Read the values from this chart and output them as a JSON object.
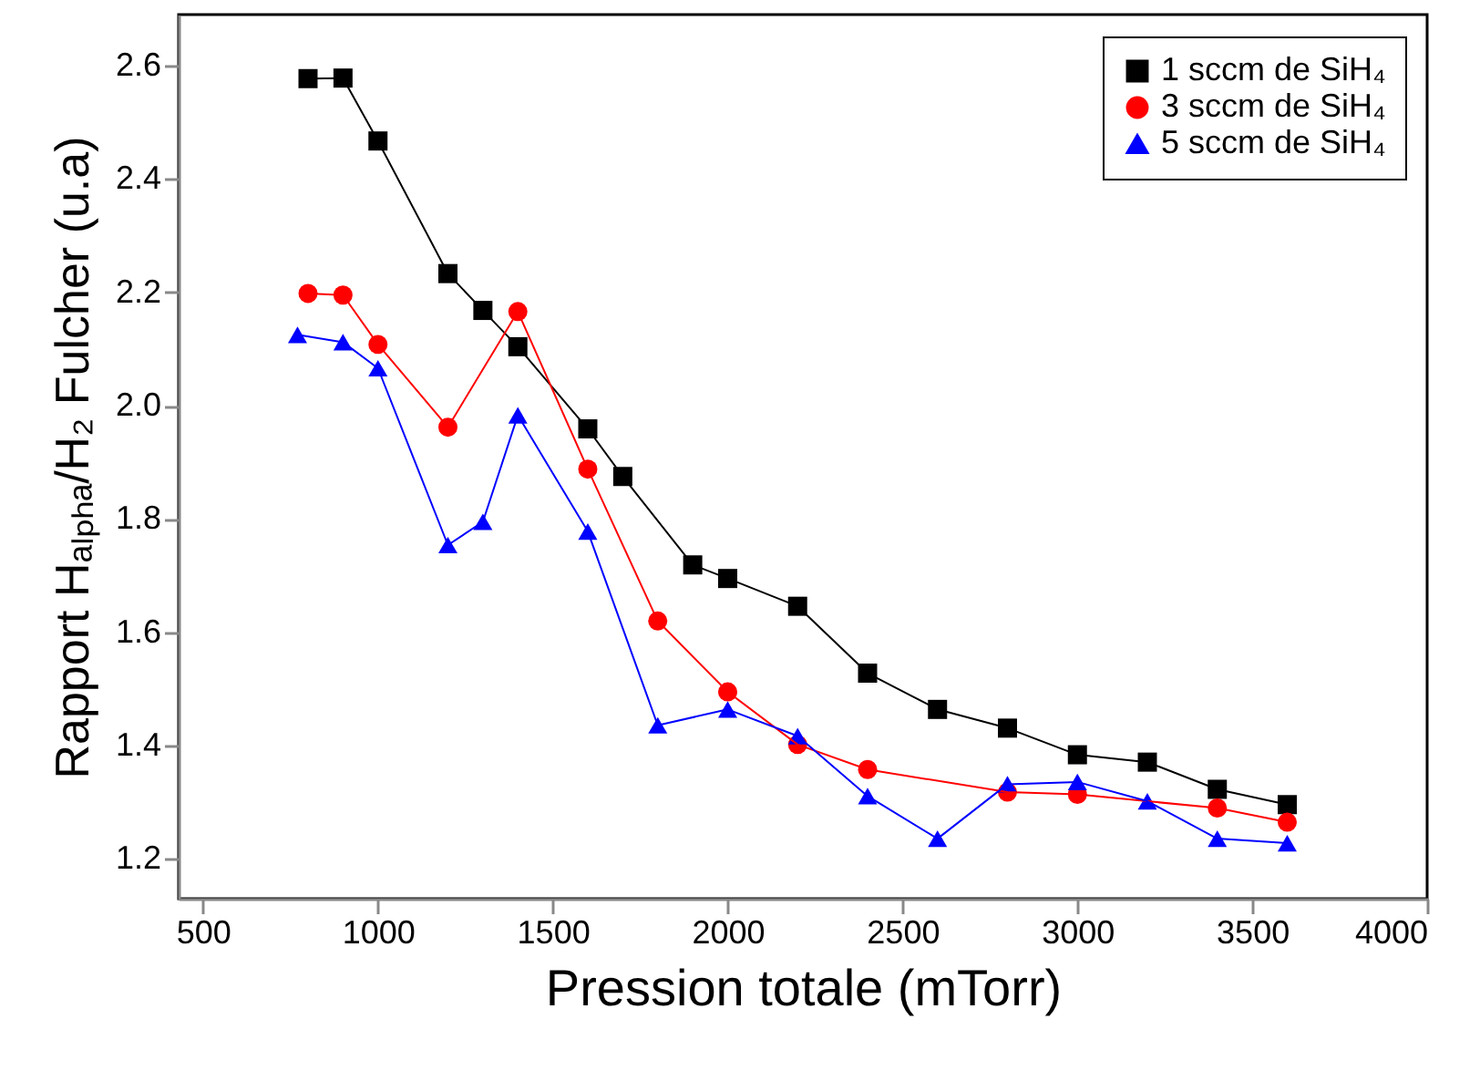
{
  "chart_data": {
    "type": "line",
    "xlabel": "Pression totale (mTorr)",
    "ylabel": "Rapport Hₐₗₚₕₐ/H₂ Fulcher (u.a)",
    "xlim": [
      430,
      4000
    ],
    "xticks": [
      500,
      1000,
      1500,
      2000,
      2500,
      3000,
      3500,
      4000
    ],
    "ylim": [
      1.13,
      2.69
    ],
    "yticks": [
      1.2,
      1.4,
      1.6,
      1.8,
      {
        "value": 2,
        "label": "2.0"
      },
      2.2,
      2.4,
      2.6
    ],
    "grid": false,
    "legend": "top right",
    "line_style": "solid",
    "series": [
      {
        "name": "1 sccm de SiH₄",
        "color": "#000000",
        "marker": "square",
        "x": [
          800,
          900,
          1000,
          1200,
          1300,
          1400,
          1600,
          1700,
          1900,
          2000,
          2200,
          2400,
          2600,
          2800,
          3000,
          3200,
          3400,
          3600
        ],
        "values": [
          2.577,
          2.578,
          2.467,
          2.233,
          2.168,
          2.104,
          1.959,
          1.875,
          1.719,
          1.695,
          1.646,
          1.528,
          1.464,
          1.431,
          1.384,
          1.371,
          1.323,
          1.296
        ]
      },
      {
        "name": "3 sccm de SiH₄",
        "color": "#ff0000",
        "marker": "circle",
        "x": [
          800,
          900,
          1000,
          1200,
          1400,
          1600,
          1800,
          2000,
          2200,
          2400,
          2800,
          3000,
          3400,
          3600
        ],
        "values": [
          2.198,
          2.195,
          2.108,
          1.962,
          2.166,
          1.888,
          1.62,
          1.495,
          1.402,
          1.358,
          1.318,
          1.314,
          1.29,
          1.265
        ]
      },
      {
        "name": "5 sccm de SiH₄",
        "color": "#0000ff",
        "marker": "triangle",
        "x": [
          770,
          900,
          1000,
          1200,
          1300,
          1400,
          1600,
          1800,
          2000,
          2200,
          2400,
          2600,
          2800,
          3000,
          3200,
          3400,
          3600
        ],
        "values": [
          2.125,
          2.112,
          2.066,
          1.754,
          1.795,
          1.983,
          1.778,
          1.436,
          1.464,
          1.417,
          1.311,
          1.236,
          1.332,
          1.336,
          1.302,
          1.236,
          1.228
        ]
      }
    ]
  }
}
